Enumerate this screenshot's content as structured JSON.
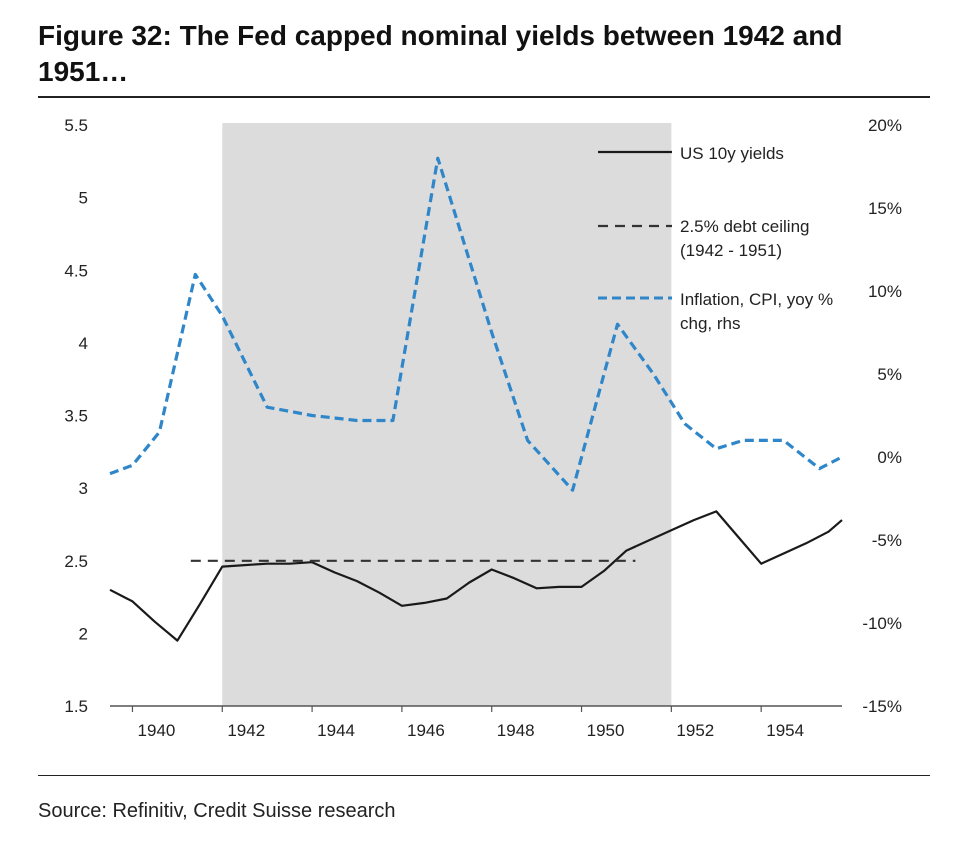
{
  "title": "Figure 32: The Fed capped nominal yields between 1942 and 1951…",
  "source": "Source: Refinitiv, Credit Suisse research",
  "colors": {
    "yields": "#1a1a1a",
    "ceiling": "#333333",
    "inflation": "#2f86c9",
    "shade": "#dcdcdc",
    "axis": "#555555"
  },
  "chart_data": {
    "type": "line",
    "shaded_period": [
      1942,
      1952
    ],
    "x_ticks": [
      1940,
      1942,
      1944,
      1946,
      1948,
      1950,
      1952,
      1954
    ],
    "x_range": [
      1939.5,
      1955.8
    ],
    "y_left": {
      "range": [
        1.5,
        5.5
      ],
      "ticks": [
        "5.5",
        "5",
        "4.5",
        "4",
        "3.5",
        "3",
        "2.5",
        "2",
        "1.5"
      ]
    },
    "y_right": {
      "range": [
        -15,
        20
      ],
      "ticks": [
        "20%",
        "15%",
        "10%",
        "5%",
        "0%",
        "-5%",
        "-10%",
        "-15%"
      ]
    },
    "legend_position": "top-right",
    "series": [
      {
        "name": "US 10y yields",
        "axis": "left",
        "style": "solid",
        "x": [
          1939.5,
          1940.0,
          1940.5,
          1941.0,
          1941.5,
          1942.0,
          1942.5,
          1943.0,
          1943.5,
          1944.0,
          1944.5,
          1945.0,
          1945.5,
          1946.0,
          1946.5,
          1947.0,
          1947.5,
          1948.0,
          1948.5,
          1949.0,
          1949.5,
          1950.0,
          1950.5,
          1951.0,
          1951.5,
          1952.0,
          1952.5,
          1953.0,
          1953.5,
          1954.0,
          1954.5,
          1955.0,
          1955.5,
          1955.8
        ],
        "y": [
          2.3,
          2.22,
          2.08,
          1.95,
          2.2,
          2.46,
          2.47,
          2.48,
          2.48,
          2.49,
          2.42,
          2.36,
          2.28,
          2.19,
          2.21,
          2.24,
          2.35,
          2.44,
          2.38,
          2.31,
          2.32,
          2.32,
          2.43,
          2.57,
          2.64,
          2.71,
          2.78,
          2.84,
          2.66,
          2.48,
          2.55,
          2.62,
          2.7,
          2.78
        ]
      },
      {
        "name": "2.5% debt ceiling (1942 - 1951)",
        "axis": "left",
        "style": "dashed",
        "x": [
          1941.3,
          1951.2
        ],
        "y": [
          2.5,
          2.5
        ]
      },
      {
        "name": "Inflation, CPI, yoy % chg, rhs",
        "axis": "right",
        "style": "dashed",
        "x": [
          1939.5,
          1940.0,
          1940.6,
          1941.4,
          1942.0,
          1943.0,
          1944.0,
          1945.0,
          1945.8,
          1946.8,
          1947.2,
          1948.0,
          1948.8,
          1949.8,
          1950.8,
          1951.6,
          1952.3,
          1953.0,
          1953.6,
          1954.5,
          1955.3,
          1955.8
        ],
        "y": [
          -1.0,
          -0.5,
          1.5,
          11.0,
          8.5,
          3.0,
          2.5,
          2.2,
          2.2,
          18.0,
          14.5,
          7.5,
          1.0,
          -2.0,
          8.0,
          5.0,
          2.0,
          0.5,
          1.0,
          1.0,
          -0.7,
          0.0
        ]
      }
    ]
  }
}
